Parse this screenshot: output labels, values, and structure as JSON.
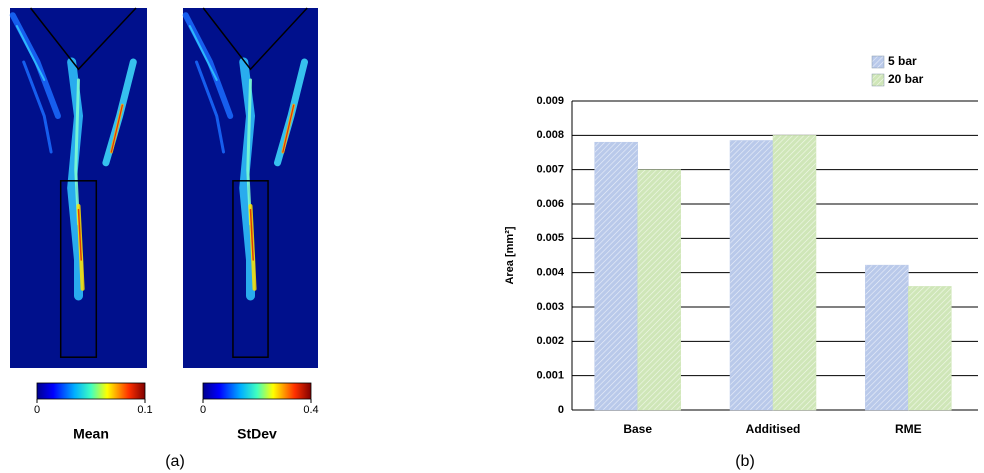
{
  "chart_data": [
    {
      "type": "heatmap",
      "colorbar_label": "Mean",
      "clim": [
        0,
        0.1
      ],
      "cticks": [
        0,
        0.1
      ]
    },
    {
      "type": "heatmap",
      "colorbar_label": "StDev",
      "clim": [
        0,
        0.4
      ],
      "cticks": [
        0,
        0.4
      ],
      "panel_label": "(a)"
    },
    {
      "type": "bar",
      "ylabel": "Area [mm²]",
      "panel_label": "(b)",
      "categories": [
        "Base",
        "Additised",
        "RME"
      ],
      "series": [
        {
          "name": "5 bar",
          "color": "#b9c9ea",
          "values": [
            0.0078,
            0.00785,
            0.00422
          ]
        },
        {
          "name": "20 bar",
          "color": "#cfe6b8",
          "values": [
            0.007,
            0.008,
            0.0036
          ]
        }
      ],
      "ylim": [
        0,
        0.009
      ],
      "yticks": [
        0,
        0.001,
        0.002,
        0.003,
        0.004,
        0.005,
        0.006,
        0.007,
        0.008,
        0.009
      ],
      "grid": true,
      "legend": "top-right"
    }
  ]
}
